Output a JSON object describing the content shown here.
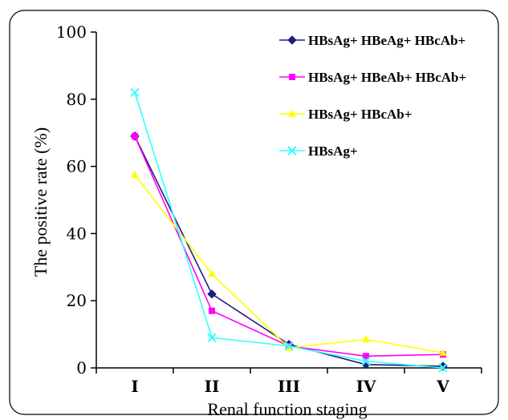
{
  "chart_data": {
    "type": "line",
    "title": "",
    "xlabel": "Renal function staging",
    "ylabel": "The positive rate (%)",
    "categories": [
      "I",
      "II",
      "III",
      "IV",
      "V"
    ],
    "ylim": [
      0,
      100
    ],
    "yticks": [
      0,
      20,
      40,
      60,
      80,
      100
    ],
    "grid": false,
    "legend_position": "top-right",
    "series": [
      {
        "name": "HBsAg+ HBeAg+ HBcAb+",
        "values": [
          69,
          22,
          7,
          1,
          0.5
        ],
        "color": "#1f1f7a",
        "marker": "diamond"
      },
      {
        "name": "HBsAg+ HBeAb+ HBcAb+",
        "values": [
          69,
          17,
          6.5,
          3.5,
          4
        ],
        "color": "#ff00ff",
        "marker": "square"
      },
      {
        "name": "HBsAg+ HBcAb+",
        "values": [
          57.5,
          28,
          6,
          8.5,
          4.5
        ],
        "color": "#ffff00",
        "marker": "triangle"
      },
      {
        "name": "HBsAg+",
        "values": [
          82,
          9,
          6.5,
          2,
          0
        ],
        "color": "#33ffff",
        "marker": "x"
      }
    ]
  }
}
